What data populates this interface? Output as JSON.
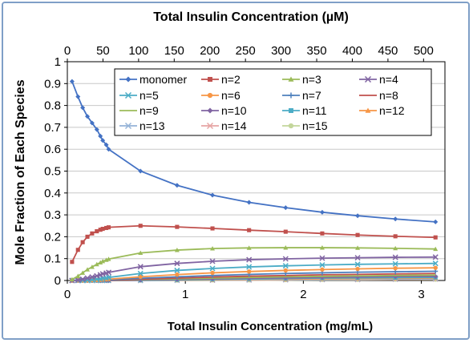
{
  "chart_data": {
    "type": "line",
    "xlabel": "Total Insulin Concentration (mg/mL)",
    "x2label": "Total Insulin Concentration (µM)",
    "ylabel": "Mole Fraction of Each Species",
    "xlim": [
      0,
      3.2
    ],
    "x2lim": [
      0,
      530
    ],
    "ylim": [
      0,
      1
    ],
    "xticks": [
      "0",
      "1",
      "2",
      "3"
    ],
    "x2ticks": [
      "0",
      "50",
      "100",
      "150",
      "200",
      "250",
      "300",
      "350",
      "400",
      "450",
      "500"
    ],
    "yticks": [
      "0",
      "0.1",
      "0.2",
      "0.3",
      "0.4",
      "0.5",
      "0.6",
      "0.7",
      "0.8",
      "0.9",
      "1"
    ],
    "legend_position": "top-right inside",
    "x": [
      0.04,
      0.09,
      0.13,
      0.17,
      0.21,
      0.25,
      0.28,
      0.3,
      0.33,
      0.35,
      0.62,
      0.93,
      1.23,
      1.54,
      1.85,
      2.16,
      2.46,
      2.78,
      3.12
    ],
    "series": [
      {
        "name": "monomer",
        "color": "#4472c4",
        "marker": "diamond",
        "values": [
          0.91,
          0.84,
          0.79,
          0.75,
          0.72,
          0.69,
          0.66,
          0.64,
          0.62,
          0.6,
          0.5,
          0.435,
          0.39,
          0.357,
          0.333,
          0.312,
          0.296,
          0.281,
          0.268
        ]
      },
      {
        "name": "n=2",
        "color": "#c0504d",
        "marker": "square",
        "values": [
          0.085,
          0.14,
          0.175,
          0.2,
          0.215,
          0.225,
          0.232,
          0.236,
          0.24,
          0.243,
          0.25,
          0.245,
          0.238,
          0.23,
          0.223,
          0.215,
          0.208,
          0.202,
          0.197
        ]
      },
      {
        "name": "n=3",
        "color": "#9bbb59",
        "marker": "triangle",
        "values": [
          0.005,
          0.02,
          0.035,
          0.05,
          0.062,
          0.074,
          0.082,
          0.088,
          0.094,
          0.098,
          0.126,
          0.139,
          0.146,
          0.149,
          0.15,
          0.15,
          0.149,
          0.147,
          0.144
        ]
      },
      {
        "name": "n=4",
        "color": "#8064a2",
        "marker": "x",
        "values": [
          0.0,
          0.002,
          0.006,
          0.011,
          0.016,
          0.021,
          0.026,
          0.03,
          0.034,
          0.037,
          0.063,
          0.078,
          0.088,
          0.095,
          0.099,
          0.102,
          0.104,
          0.106,
          0.107
        ]
      },
      {
        "name": "n=5",
        "color": "#4bacc6",
        "marker": "x",
        "values": [
          0.0,
          0.0,
          0.001,
          0.002,
          0.004,
          0.006,
          0.008,
          0.01,
          0.012,
          0.014,
          0.032,
          0.046,
          0.055,
          0.062,
          0.067,
          0.071,
          0.074,
          0.076,
          0.078
        ]
      },
      {
        "name": "n=6",
        "color": "#f79646",
        "marker": "circle",
        "values": [
          0.0,
          0.0,
          0.0,
          0.0,
          0.001,
          0.002,
          0.003,
          0.004,
          0.005,
          0.006,
          0.017,
          0.027,
          0.035,
          0.041,
          0.046,
          0.05,
          0.053,
          0.056,
          0.058
        ]
      },
      {
        "name": "n=7",
        "color": "#4f81bd",
        "marker": "plus",
        "values": [
          0.0,
          0.0,
          0.0,
          0.0,
          0.0,
          0.001,
          0.001,
          0.002,
          0.002,
          0.003,
          0.01,
          0.017,
          0.023,
          0.028,
          0.032,
          0.035,
          0.038,
          0.04,
          0.042
        ]
      },
      {
        "name": "n=8",
        "color": "#c0504d",
        "marker": "none",
        "values": [
          0.0,
          0.0,
          0.0,
          0.0,
          0.0,
          0.0,
          0.0,
          0.001,
          0.001,
          0.001,
          0.006,
          0.011,
          0.016,
          0.02,
          0.023,
          0.026,
          0.028,
          0.03,
          0.032
        ]
      },
      {
        "name": "n=9",
        "color": "#9bbb59",
        "marker": "none",
        "values": [
          0.0,
          0.0,
          0.0,
          0.0,
          0.0,
          0.0,
          0.0,
          0.0,
          0.0,
          0.001,
          0.004,
          0.008,
          0.011,
          0.014,
          0.017,
          0.019,
          0.021,
          0.023,
          0.025
        ]
      },
      {
        "name": "n=10",
        "color": "#8064a2",
        "marker": "diamond",
        "values": [
          0.0,
          0.0,
          0.0,
          0.0,
          0.0,
          0.0,
          0.0,
          0.0,
          0.0,
          0.0,
          0.002,
          0.005,
          0.008,
          0.01,
          0.012,
          0.014,
          0.016,
          0.018,
          0.019
        ]
      },
      {
        "name": "n=11",
        "color": "#4bacc6",
        "marker": "square",
        "values": [
          0.0,
          0.0,
          0.0,
          0.0,
          0.0,
          0.0,
          0.0,
          0.0,
          0.0,
          0.0,
          0.001,
          0.003,
          0.005,
          0.007,
          0.009,
          0.011,
          0.012,
          0.013,
          0.014
        ]
      },
      {
        "name": "n=12",
        "color": "#f79646",
        "marker": "triangle",
        "values": [
          0.0,
          0.0,
          0.0,
          0.0,
          0.0,
          0.0,
          0.0,
          0.0,
          0.0,
          0.0,
          0.001,
          0.002,
          0.003,
          0.005,
          0.006,
          0.008,
          0.009,
          0.01,
          0.011
        ]
      },
      {
        "name": "n=13",
        "color": "#95b3d7",
        "marker": "x",
        "values": [
          0.0,
          0.0,
          0.0,
          0.0,
          0.0,
          0.0,
          0.0,
          0.0,
          0.0,
          0.0,
          0.0,
          0.001,
          0.002,
          0.003,
          0.004,
          0.005,
          0.006,
          0.007,
          0.008
        ]
      },
      {
        "name": "n=14",
        "color": "#e6a5a4",
        "marker": "x",
        "values": [
          0.0,
          0.0,
          0.0,
          0.0,
          0.0,
          0.0,
          0.0,
          0.0,
          0.0,
          0.0,
          0.0,
          0.001,
          0.001,
          0.002,
          0.003,
          0.004,
          0.004,
          0.005,
          0.006
        ]
      },
      {
        "name": "n=15",
        "color": "#c3d69b",
        "marker": "circle",
        "values": [
          0.0,
          0.0,
          0.0,
          0.0,
          0.0,
          0.0,
          0.0,
          0.0,
          0.0,
          0.0,
          0.0,
          0.0,
          0.001,
          0.001,
          0.002,
          0.003,
          0.003,
          0.004,
          0.004
        ]
      }
    ]
  }
}
